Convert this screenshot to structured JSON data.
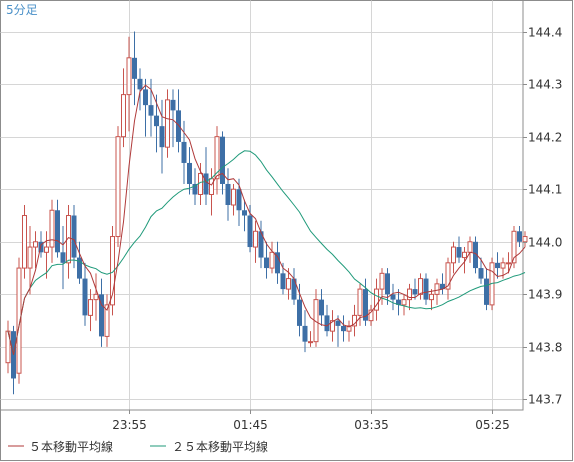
{
  "chart_data": {
    "type": "candlestick",
    "timeframe_label": "5分足",
    "ylim": [
      143.68,
      144.46
    ],
    "y_ticks": [
      "144.4",
      "144.3",
      "144.2",
      "144.1",
      "144.0",
      "143.9",
      "143.8",
      "143.7"
    ],
    "y_tick_values": [
      144.4,
      144.3,
      144.2,
      144.1,
      144.0,
      143.9,
      143.8,
      143.7
    ],
    "x_ticks": [
      "23:55",
      "01:45",
      "03:35",
      "05:25"
    ],
    "x_tick_candle_index": [
      22,
      44,
      66,
      88
    ],
    "candles": [
      [
        143.77,
        143.85,
        143.75,
        143.83
      ],
      [
        143.83,
        143.84,
        143.71,
        143.74
      ],
      [
        143.75,
        143.97,
        143.73,
        143.95
      ],
      [
        143.95,
        144.07,
        143.93,
        144.05
      ],
      [
        143.95,
        144.03,
        143.9,
        143.99
      ],
      [
        143.99,
        144.02,
        143.95,
        144.0
      ],
      [
        144.0,
        144.02,
        143.97,
        143.98
      ],
      [
        143.98,
        144.02,
        143.93,
        143.99
      ],
      [
        143.99,
        144.08,
        143.96,
        144.06
      ],
      [
        144.06,
        144.08,
        143.97,
        143.98
      ],
      [
        143.98,
        144.03,
        143.91,
        143.96
      ],
      [
        143.96,
        144.07,
        143.93,
        144.05
      ],
      [
        144.05,
        144.07,
        143.95,
        143.97
      ],
      [
        143.97,
        144.0,
        143.92,
        143.93
      ],
      [
        143.93,
        143.96,
        143.84,
        143.86
      ],
      [
        143.86,
        143.91,
        143.83,
        143.89
      ],
      [
        143.89,
        143.94,
        143.85,
        143.9
      ],
      [
        143.9,
        143.93,
        143.8,
        143.82
      ],
      [
        143.82,
        143.9,
        143.8,
        143.88
      ],
      [
        143.88,
        144.03,
        143.86,
        144.01
      ],
      [
        144.01,
        144.22,
        143.99,
        144.2
      ],
      [
        144.2,
        144.33,
        144.18,
        144.28
      ],
      [
        144.28,
        144.39,
        144.21,
        144.35
      ],
      [
        144.35,
        144.4,
        144.26,
        144.31
      ],
      [
        144.31,
        144.33,
        144.25,
        144.29
      ],
      [
        144.29,
        144.31,
        144.2,
        144.26
      ],
      [
        144.26,
        144.31,
        144.2,
        144.24
      ],
      [
        144.24,
        144.28,
        144.17,
        144.22
      ],
      [
        144.22,
        144.27,
        144.13,
        144.18
      ],
      [
        144.18,
        144.29,
        144.16,
        144.27
      ],
      [
        144.27,
        144.29,
        144.18,
        144.25
      ],
      [
        144.25,
        144.29,
        144.17,
        144.19
      ],
      [
        144.19,
        144.23,
        144.11,
        144.15
      ],
      [
        144.15,
        144.18,
        144.09,
        144.11
      ],
      [
        144.11,
        144.14,
        144.07,
        144.09
      ],
      [
        144.09,
        144.15,
        144.07,
        144.13
      ],
      [
        144.13,
        144.18,
        144.07,
        144.09
      ],
      [
        144.09,
        144.14,
        144.05,
        144.12
      ],
      [
        144.12,
        144.22,
        144.09,
        144.2
      ],
      [
        144.2,
        144.21,
        144.09,
        144.11
      ],
      [
        144.11,
        144.14,
        144.04,
        144.07
      ],
      [
        144.07,
        144.11,
        144.05,
        144.1
      ],
      [
        144.1,
        144.12,
        144.03,
        144.06
      ],
      [
        144.06,
        144.08,
        144.02,
        144.05
      ],
      [
        144.05,
        144.07,
        143.98,
        143.99
      ],
      [
        143.99,
        144.04,
        143.96,
        144.02
      ],
      [
        144.02,
        144.04,
        143.95,
        143.97
      ],
      [
        143.97,
        144.0,
        143.93,
        143.95
      ],
      [
        143.95,
        144.0,
        143.94,
        143.98
      ],
      [
        143.98,
        144.0,
        143.92,
        143.94
      ],
      [
        143.94,
        143.96,
        143.9,
        143.91
      ],
      [
        143.91,
        143.95,
        143.89,
        143.93
      ],
      [
        143.93,
        143.95,
        143.88,
        143.89
      ],
      [
        143.89,
        143.92,
        143.82,
        143.84
      ],
      [
        143.84,
        143.87,
        143.79,
        143.81
      ],
      [
        143.81,
        143.83,
        143.8,
        143.81
      ],
      [
        143.81,
        143.91,
        143.8,
        143.89
      ],
      [
        143.89,
        143.91,
        143.84,
        143.86
      ],
      [
        143.86,
        143.88,
        143.82,
        143.83
      ],
      [
        143.83,
        143.87,
        143.81,
        143.85
      ],
      [
        143.85,
        143.86,
        143.8,
        143.84
      ],
      [
        143.84,
        143.86,
        143.81,
        143.83
      ],
      [
        143.83,
        143.85,
        143.81,
        143.84
      ],
      [
        143.84,
        143.88,
        143.82,
        143.86
      ],
      [
        143.86,
        143.92,
        143.84,
        143.91
      ],
      [
        143.91,
        143.93,
        143.84,
        143.85
      ],
      [
        143.85,
        143.88,
        143.84,
        143.87
      ],
      [
        143.87,
        143.93,
        143.85,
        143.91
      ],
      [
        143.91,
        143.95,
        143.88,
        143.94
      ],
      [
        143.94,
        143.95,
        143.88,
        143.9
      ],
      [
        143.9,
        143.92,
        143.87,
        143.89
      ],
      [
        143.89,
        143.91,
        143.86,
        143.88
      ],
      [
        143.88,
        143.9,
        143.86,
        143.89
      ],
      [
        143.89,
        143.92,
        143.87,
        143.91
      ],
      [
        143.91,
        143.93,
        143.89,
        143.9
      ],
      [
        143.9,
        143.94,
        143.89,
        143.93
      ],
      [
        143.93,
        143.94,
        143.88,
        143.89
      ],
      [
        143.89,
        143.91,
        143.87,
        143.9
      ],
      [
        143.9,
        143.93,
        143.88,
        143.92
      ],
      [
        143.92,
        143.94,
        143.9,
        143.91
      ],
      [
        143.91,
        143.97,
        143.89,
        143.96
      ],
      [
        143.96,
        144.0,
        143.94,
        143.99
      ],
      [
        143.99,
        144.01,
        143.96,
        143.97
      ],
      [
        143.97,
        143.99,
        143.94,
        143.98
      ],
      [
        143.98,
        144.01,
        143.96,
        144.0
      ],
      [
        144.0,
        144.01,
        143.94,
        143.95
      ],
      [
        143.95,
        143.97,
        143.92,
        143.93
      ],
      [
        143.93,
        143.95,
        143.87,
        143.88
      ],
      [
        143.88,
        143.97,
        143.87,
        143.96
      ],
      [
        143.96,
        143.98,
        143.93,
        143.95
      ],
      [
        143.95,
        143.97,
        143.93,
        143.96
      ],
      [
        143.96,
        143.98,
        143.94,
        143.96
      ],
      [
        143.96,
        144.03,
        143.95,
        144.02
      ],
      [
        144.02,
        144.03,
        143.99,
        144.0
      ],
      [
        144.0,
        144.02,
        143.99,
        144.01
      ]
    ],
    "ma_short_label": "５本移動平均線",
    "ma_long_label": "２５本移動平均線",
    "colors": {
      "up": "#c8544e",
      "down": "#3d6fa6",
      "ma_short": "#b03a3a",
      "ma_long": "#1f9a7a",
      "grid": "#d6d6d6"
    }
  }
}
